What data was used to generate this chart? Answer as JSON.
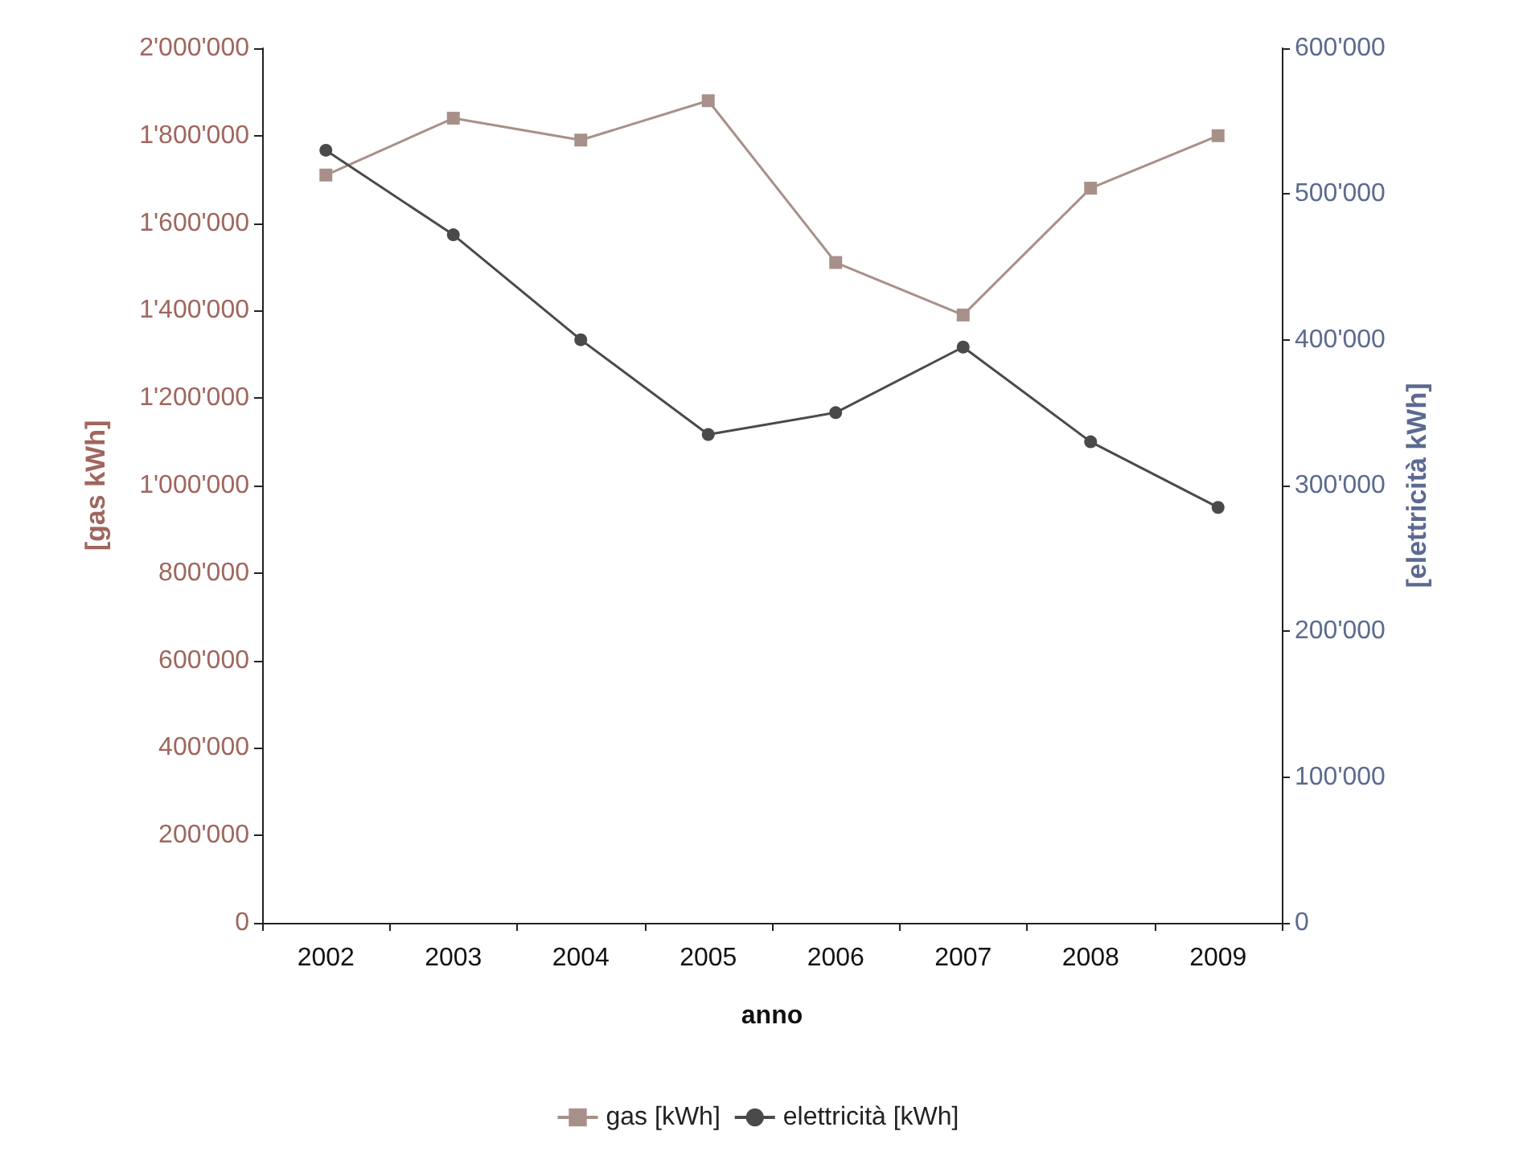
{
  "chart_data": {
    "type": "line",
    "xlabel": "anno",
    "ylabel": "[gas kWh]",
    "y2label": "[elettricità kWh]",
    "categories": [
      "2002",
      "2003",
      "2004",
      "2005",
      "2006",
      "2007",
      "2008",
      "2009"
    ],
    "series": [
      {
        "name": "gas [kWh]",
        "color": "#a8908a",
        "marker": "square",
        "values": [
          1710000,
          1840000,
          1790000,
          1880000,
          1510000,
          1390000,
          1680000,
          1800000
        ]
      },
      {
        "name": "elettricità [kWh]",
        "color": "#4a4a4a",
        "marker": "circle",
        "axis": "y2",
        "values": [
          530000,
          472000,
          400000,
          335000,
          350000,
          395000,
          330000,
          285000
        ]
      }
    ],
    "ylim": [
      0,
      2000000
    ],
    "yticks": [
      {
        "value": 0,
        "label": "0"
      },
      {
        "value": 200000,
        "label": "200'000"
      },
      {
        "value": 400000,
        "label": "400'000"
      },
      {
        "value": 600000,
        "label": "600'000"
      },
      {
        "value": 800000,
        "label": "800'000"
      },
      {
        "value": 1000000,
        "label": "1'000'000"
      },
      {
        "value": 1200000,
        "label": "1'200'000"
      },
      {
        "value": 1400000,
        "label": "1'400'000"
      },
      {
        "value": 1600000,
        "label": "1'600'000"
      },
      {
        "value": 1800000,
        "label": "1'800'000"
      },
      {
        "value": 2000000,
        "label": "2'000'000"
      }
    ],
    "y2lim": [
      0,
      600000
    ],
    "y2ticks": [
      {
        "value": 0,
        "label": "0"
      },
      {
        "value": 100000,
        "label": "100'000"
      },
      {
        "value": 200000,
        "label": "200'000"
      },
      {
        "value": 300000,
        "label": "300'000"
      },
      {
        "value": 400000,
        "label": "400'000"
      },
      {
        "value": 500000,
        "label": "500'000"
      },
      {
        "value": 600000,
        "label": "600'000"
      }
    ],
    "grid": false,
    "legend": "bottom"
  }
}
